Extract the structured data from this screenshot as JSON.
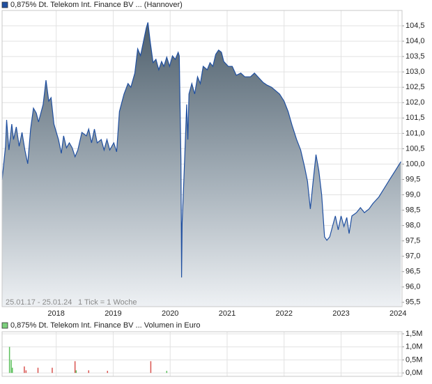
{
  "chart_data": [
    {
      "type": "area",
      "series": [
        {
          "name": "0,875% Dt. Telekom Int. Finance BV ... (Hannover)",
          "color": "#1f4fa0",
          "values": [
            99.49,
            100.58,
            101.44,
            100.46,
            101.3,
            100.8,
            101.21,
            100.58,
            101.03,
            100.46,
            100.01,
            101.14,
            101.82,
            101.66,
            101.37,
            101.94,
            102.73,
            102.05,
            102.16,
            101.3,
            100.8,
            100.35,
            100.92,
            100.53,
            100.69,
            100.53,
            100.24,
            100.46,
            101.03,
            100.92,
            101.14,
            100.69,
            101.14,
            100.69,
            100.8,
            100.46,
            100.8,
            100.46,
            100.69,
            100.4,
            101.71,
            102.28,
            102.62,
            102.5,
            102.96,
            103.75,
            103.53,
            103.98,
            104.43,
            104.61,
            103.98,
            103.3,
            103.41,
            103.07,
            103.34,
            103.18,
            103.48,
            103.18,
            103.52,
            103.41,
            103.64,
            103.52,
            100.12,
            96.31,
            98.08,
            99.44,
            101.94,
            100.8,
            102.28,
            102.62,
            102.28,
            102.84,
            102.62,
            103.18,
            103.07,
            103.3,
            103.18,
            103.57,
            103.71,
            103.64,
            103.34,
            103.18,
            103.18,
            102.89,
            102.96,
            102.84,
            102.84,
            102.96,
            102.8,
            102.66,
            102.57,
            102.5,
            102.39,
            102.28,
            102.05,
            101.71,
            101.26,
            100.8,
            100.46,
            99.9,
            99.44,
            98.54,
            99.44,
            100.31,
            99.78,
            98.99,
            97.63,
            97.52,
            97.63,
            97.97,
            98.31,
            97.86,
            98.31,
            97.97,
            98.26,
            97.74,
            98.31,
            98.42,
            98.58,
            98.42,
            98.54,
            98.72,
            98.92,
            99.22,
            99.49,
            99.78,
            100.08
          ]
        }
      ],
      "x": [
        2017.05,
        2017.11,
        2017.13,
        2017.17,
        2017.22,
        2017.25,
        2017.3,
        2017.35,
        2017.4,
        2017.45,
        2017.5,
        2017.55,
        2017.6,
        2017.65,
        2017.69,
        2017.77,
        2017.82,
        2017.87,
        2017.91,
        2017.96,
        2018.04,
        2018.09,
        2018.13,
        2018.18,
        2018.23,
        2018.28,
        2018.33,
        2018.38,
        2018.45,
        2018.53,
        2018.57,
        2018.62,
        2018.67,
        2018.72,
        2018.79,
        2018.84,
        2018.89,
        2018.94,
        2019.01,
        2019.06,
        2019.11,
        2019.19,
        2019.26,
        2019.31,
        2019.38,
        2019.43,
        2019.48,
        2019.53,
        2019.58,
        2019.61,
        2019.65,
        2019.7,
        2019.75,
        2019.8,
        2019.85,
        2019.89,
        2019.94,
        2019.99,
        2020.04,
        2020.09,
        2020.14,
        2020.16,
        2020.19,
        2020.2,
        2020.21,
        2020.24,
        2020.29,
        2020.31,
        2020.33,
        2020.38,
        2020.43,
        2020.48,
        2020.53,
        2020.58,
        2020.65,
        2020.7,
        2020.75,
        2020.8,
        2020.85,
        2020.9,
        2020.94,
        2021.02,
        2021.09,
        2021.16,
        2021.24,
        2021.31,
        2021.41,
        2021.48,
        2021.56,
        2021.63,
        2021.7,
        2021.78,
        2021.85,
        2021.92,
        2022.0,
        2022.07,
        2022.14,
        2022.22,
        2022.29,
        2022.36,
        2022.41,
        2022.46,
        2022.51,
        2022.56,
        2022.61,
        2022.66,
        2022.71,
        2022.75,
        2022.8,
        2022.85,
        2022.9,
        2022.95,
        2023.0,
        2023.05,
        2023.1,
        2023.14,
        2023.19,
        2023.27,
        2023.34,
        2023.41,
        2023.49,
        2023.56,
        2023.66,
        2023.76,
        2023.85,
        2023.95,
        2024.05
      ],
      "xlim": [
        2017.05,
        2024.07
      ],
      "xticks": [
        2018,
        2019,
        2020,
        2021,
        2022,
        2023,
        2024
      ],
      "ylim": [
        95.36,
        105.0
      ],
      "yticks": [
        {
          "value": 95.5,
          "label": "95,5"
        },
        {
          "value": 96.0,
          "label": "96,0"
        },
        {
          "value": 96.5,
          "label": "96,5"
        },
        {
          "value": 97.0,
          "label": "97,0"
        },
        {
          "value": 97.5,
          "label": "97,5"
        },
        {
          "value": 98.0,
          "label": "98,0"
        },
        {
          "value": 98.5,
          "label": "98,5"
        },
        {
          "value": 99.0,
          "label": "99,0"
        },
        {
          "value": 99.5,
          "label": "99,5"
        },
        {
          "value": 100.0,
          "label": "100,0"
        },
        {
          "value": 100.5,
          "label": "100,5"
        },
        {
          "value": 101.0,
          "label": "101,0"
        },
        {
          "value": 101.5,
          "label": "101,5"
        },
        {
          "value": 102.0,
          "label": "102,0"
        },
        {
          "value": 102.5,
          "label": "102,5"
        },
        {
          "value": 103.0,
          "label": "103,0"
        },
        {
          "value": 103.5,
          "label": "103,5"
        },
        {
          "value": 104.0,
          "label": "104,0"
        },
        {
          "value": 104.5,
          "label": "104,5"
        }
      ],
      "grid": true,
      "annotations": [
        "25.01.17 - 25.01.24",
        "1 Tick = 1 Woche"
      ]
    },
    {
      "type": "bar",
      "series": [
        {
          "name": "0,875% Dt. Telekom Int. Finance BV ... Volumen in Euro",
          "color": "#7ccf7c",
          "values": [
            1000000,
            500000,
            200000,
            250000,
            100000,
            200000,
            200000,
            450000,
            100000,
            100000,
            80000,
            450000,
            80000
          ],
          "colors": [
            "#5cc05c",
            "#5cc05c",
            "#5cc05c",
            "#d9534f",
            "#d9534f",
            "#d9534f",
            "#d9534f",
            "#d9534f",
            "#5cc05c",
            "#d9534f",
            "#d9534f",
            "#d9534f",
            "#5cc05c"
          ]
        }
      ],
      "x": [
        2017.18,
        2017.21,
        2017.23,
        2017.44,
        2017.47,
        2017.68,
        2017.93,
        2018.33,
        2018.35,
        2018.57,
        2018.9,
        2019.66,
        2019.94
      ],
      "xlim": [
        2017.05,
        2024.07
      ],
      "xticks": [
        2018,
        2019,
        2020,
        2021,
        2022,
        2023,
        2024
      ],
      "ylim": [
        -130000,
        1580000
      ],
      "yticks": [
        {
          "value": 0,
          "label": "0,0M"
        },
        {
          "value": 500000,
          "label": "0,5M"
        },
        {
          "value": 1000000,
          "label": "1,0M"
        },
        {
          "value": 1500000,
          "label": "1,5M"
        }
      ],
      "grid": true
    }
  ]
}
